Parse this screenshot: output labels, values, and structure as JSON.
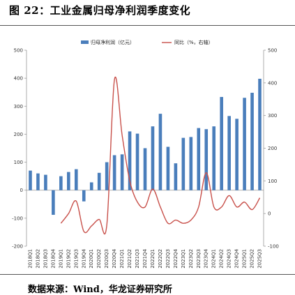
{
  "figure": {
    "title": "图 22：工业金属归母净利润季度变化",
    "source": "数据来源：Wind，华龙证券研究所"
  },
  "chart_data": {
    "type": "bar",
    "title": "",
    "xlabel": "",
    "ylabel": "",
    "categories": [
      "2018Q1",
      "2018Q2",
      "2018Q3",
      "2018Q4",
      "2019Q1",
      "2019Q2",
      "2019Q3",
      "2019Q4",
      "2020Q1",
      "2020Q2",
      "2020Q3",
      "2020Q4",
      "2021Q1",
      "2021Q2",
      "2021Q3",
      "2021Q4",
      "2022Q1",
      "2022Q2",
      "2022Q3",
      "2022Q4",
      "2023Q1",
      "2023Q2",
      "2023Q3",
      "2023Q4",
      "2024Q1",
      "2024Q2",
      "2024Q3",
      "2024Q4",
      "2025Q1",
      "2025Q2",
      "2025Q3"
    ],
    "series": [
      {
        "name": "归母净利润（亿元）",
        "type": "bar",
        "axis": "left",
        "color": "#4a7ebb",
        "values": [
          70,
          60,
          55,
          -88,
          50,
          65,
          75,
          -40,
          28,
          62,
          100,
          125,
          128,
          210,
          202,
          150,
          228,
          273,
          155,
          96,
          187,
          190,
          222,
          218,
          228,
          333,
          265,
          255,
          330,
          348,
          398
        ]
      },
      {
        "name": "同比（%，右轴）",
        "type": "line",
        "axis": "right",
        "color": "#c8504a",
        "values": [
          null,
          null,
          null,
          null,
          -30,
          0,
          38,
          -55,
          -38,
          -18,
          -35,
          410,
          240,
          100,
          35,
          20,
          75,
          20,
          -30,
          -20,
          -30,
          -20,
          20,
          125,
          20,
          20,
          55,
          20,
          35,
          12,
          48
        ]
      }
    ],
    "y_left": {
      "min": -200,
      "max": 500,
      "ticks": [
        -200,
        -100,
        0,
        100,
        200,
        300,
        400,
        500
      ]
    },
    "y_right": {
      "min": -100,
      "max": 500,
      "ticks": [
        -100,
        0,
        100,
        200,
        300,
        400,
        500
      ]
    },
    "legend": {
      "position": "top-center"
    },
    "grid": false
  }
}
